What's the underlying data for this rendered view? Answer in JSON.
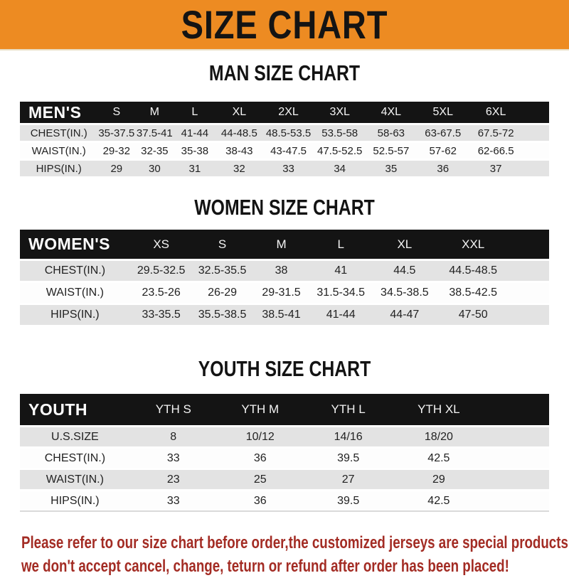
{
  "banner": {
    "title": "SIZE CHART"
  },
  "colors": {
    "banner_bg": "#ED8B22",
    "header_bar": "#141414",
    "row_alt": "#E3E3E3",
    "footer_text": "#A32C24"
  },
  "sections": [
    {
      "heading": "MAN SIZE CHART",
      "table": {
        "label": "MEN'S",
        "columns": [
          "S",
          "M",
          "L",
          "XL",
          "2XL",
          "3XL",
          "4XL",
          "5XL",
          "6XL"
        ],
        "rows": [
          {
            "label": "CHEST(IN.)",
            "values": [
              "35-37.5",
              "37.5-41",
              "41-44",
              "44-48.5",
              "48.5-53.5",
              "53.5-58",
              "58-63",
              "63-67.5",
              "67.5-72"
            ]
          },
          {
            "label": "WAIST(IN.)",
            "values": [
              "29-32",
              "32-35",
              "35-38",
              "38-43",
              "43-47.5",
              "47.5-52.5",
              "52.5-57",
              "57-62",
              "62-66.5"
            ]
          },
          {
            "label": "HIPS(IN.)",
            "values": [
              "29",
              "30",
              "31",
              "32",
              "33",
              "34",
              "35",
              "36",
              "37"
            ]
          }
        ]
      }
    },
    {
      "heading": "WOMEN SIZE CHART",
      "table": {
        "label": "WOMEN'S",
        "columns": [
          "XS",
          "S",
          "M",
          "L",
          "XL",
          "XXL"
        ],
        "rows": [
          {
            "label": "CHEST(IN.)",
            "values": [
              "29.5-32.5",
              "32.5-35.5",
              "38",
              "41",
              "44.5",
              "44.5-48.5"
            ]
          },
          {
            "label": "WAIST(IN.)",
            "values": [
              "23.5-26",
              "26-29",
              "29-31.5",
              "31.5-34.5",
              "34.5-38.5",
              "38.5-42.5"
            ]
          },
          {
            "label": "HIPS(IN.)",
            "values": [
              "33-35.5",
              "35.5-38.5",
              "38.5-41",
              "41-44",
              "44-47",
              "47-50"
            ]
          }
        ]
      }
    },
    {
      "heading": "YOUTH SIZE CHART",
      "table": {
        "label": "YOUTH",
        "columns": [
          "YTH S",
          "YTH M",
          "YTH L",
          "YTH XL"
        ],
        "rows": [
          {
            "label": "U.S.SIZE",
            "values": [
              "8",
              "10/12",
              "14/16",
              "18/20"
            ]
          },
          {
            "label": "CHEST(IN.)",
            "values": [
              "33",
              "36",
              "39.5",
              "42.5"
            ]
          },
          {
            "label": "WAIST(IN.)",
            "values": [
              "23",
              "25",
              "27",
              "29"
            ]
          },
          {
            "label": "HIPS(IN.)",
            "values": [
              "33",
              "36",
              "39.5",
              "42.5"
            ]
          }
        ]
      }
    }
  ],
  "footer": {
    "line1": "Please refer to our size chart before order,the customized jerseys are special products,",
    "line2": "we don't accept cancel, change, teturn or refund after order has been placed!"
  }
}
